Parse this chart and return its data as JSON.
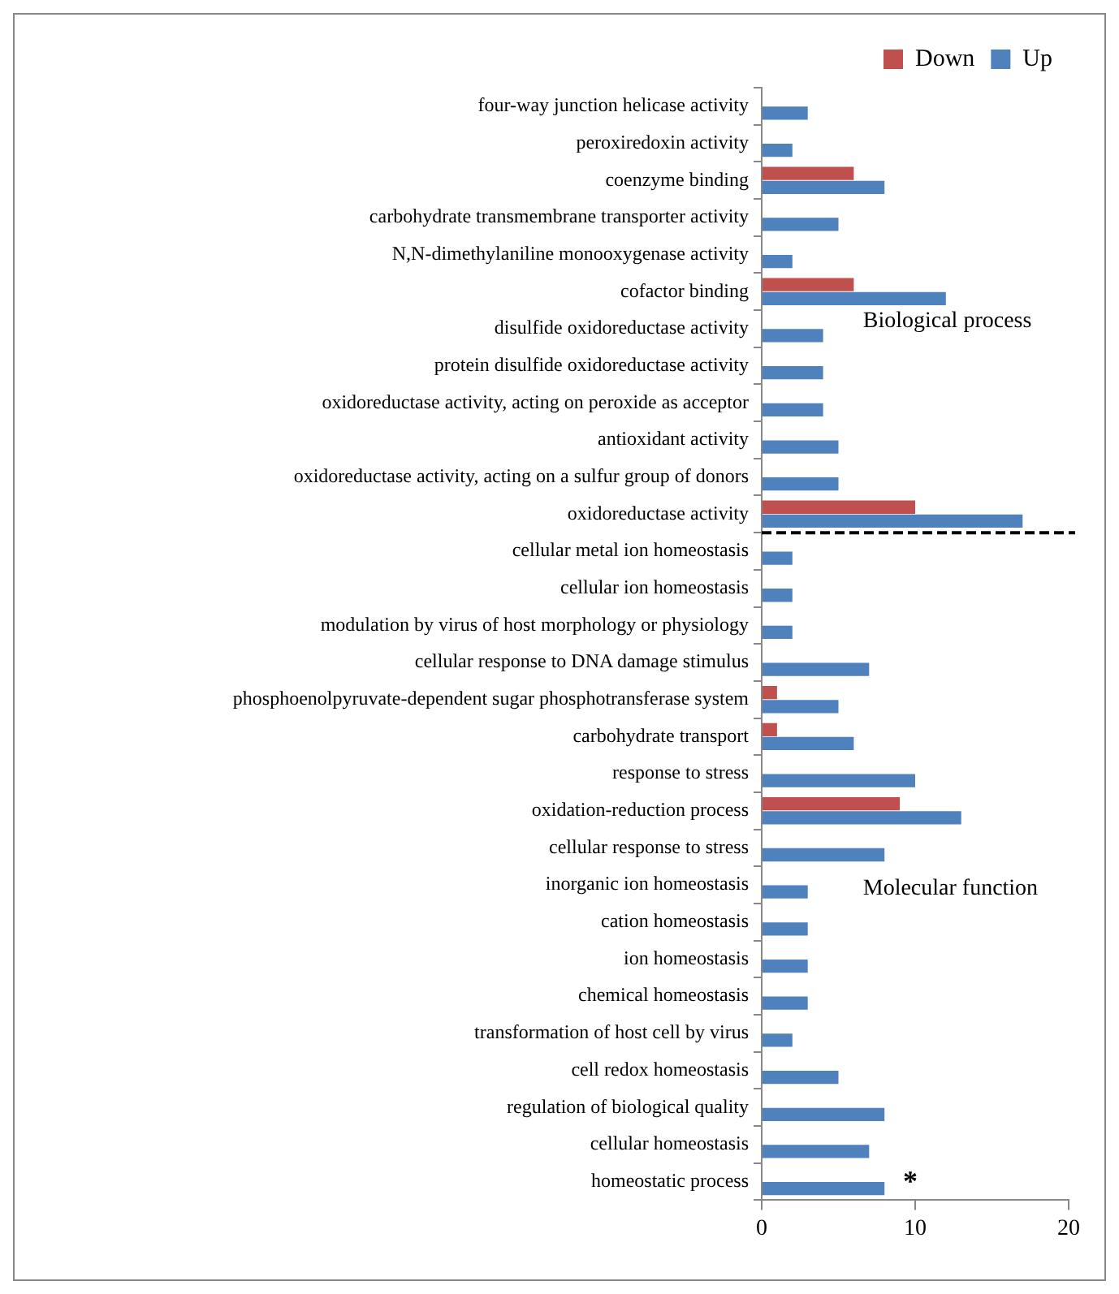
{
  "chart_data": {
    "type": "bar",
    "orientation": "horizontal",
    "categories": [
      "four-way junction helicase activity",
      "peroxiredoxin activity",
      "coenzyme binding",
      "carbohydrate transmembrane transporter activity",
      "N,N-dimethylaniline monooxygenase activity",
      "cofactor binding",
      "disulfide oxidoreductase activity",
      "protein disulfide oxidoreductase activity",
      "oxidoreductase activity, acting on peroxide as acceptor",
      "antioxidant activity",
      "oxidoreductase activity, acting on a sulfur group of donors",
      "oxidoreductase activity",
      "cellular metal ion homeostasis",
      "cellular ion homeostasis",
      "modulation by virus of host morphology or physiology",
      "cellular response to DNA damage stimulus",
      "phosphoenolpyruvate-dependent sugar phosphotransferase system",
      "carbohydrate transport",
      "response to stress",
      "oxidation-reduction process",
      "cellular response to stress",
      "inorganic ion homeostasis",
      "cation homeostasis",
      "ion homeostasis",
      "chemical homeostasis",
      "transformation of host cell by virus",
      "cell redox homeostasis",
      "regulation of biological quality",
      "cellular homeostasis",
      "homeostatic process"
    ],
    "series": [
      {
        "name": "Down",
        "color": "#c0504d",
        "values": [
          null,
          null,
          6,
          null,
          null,
          6,
          null,
          null,
          null,
          null,
          null,
          10,
          null,
          null,
          null,
          null,
          1,
          1,
          null,
          9,
          null,
          null,
          null,
          null,
          null,
          null,
          null,
          null,
          null,
          null
        ]
      },
      {
        "name": "Up",
        "color": "#4f81bd",
        "values": [
          3,
          2,
          8,
          5,
          2,
          12,
          4,
          4,
          4,
          5,
          5,
          17,
          2,
          2,
          2,
          7,
          5,
          6,
          10,
          13,
          8,
          3,
          3,
          3,
          3,
          2,
          5,
          8,
          7,
          8
        ]
      }
    ],
    "xlim": [
      0,
      20
    ],
    "xticks": [
      0,
      10,
      20
    ],
    "grid": false,
    "legend": "top right",
    "annotations": [
      "Biological process",
      "Molecular function",
      "*"
    ]
  }
}
